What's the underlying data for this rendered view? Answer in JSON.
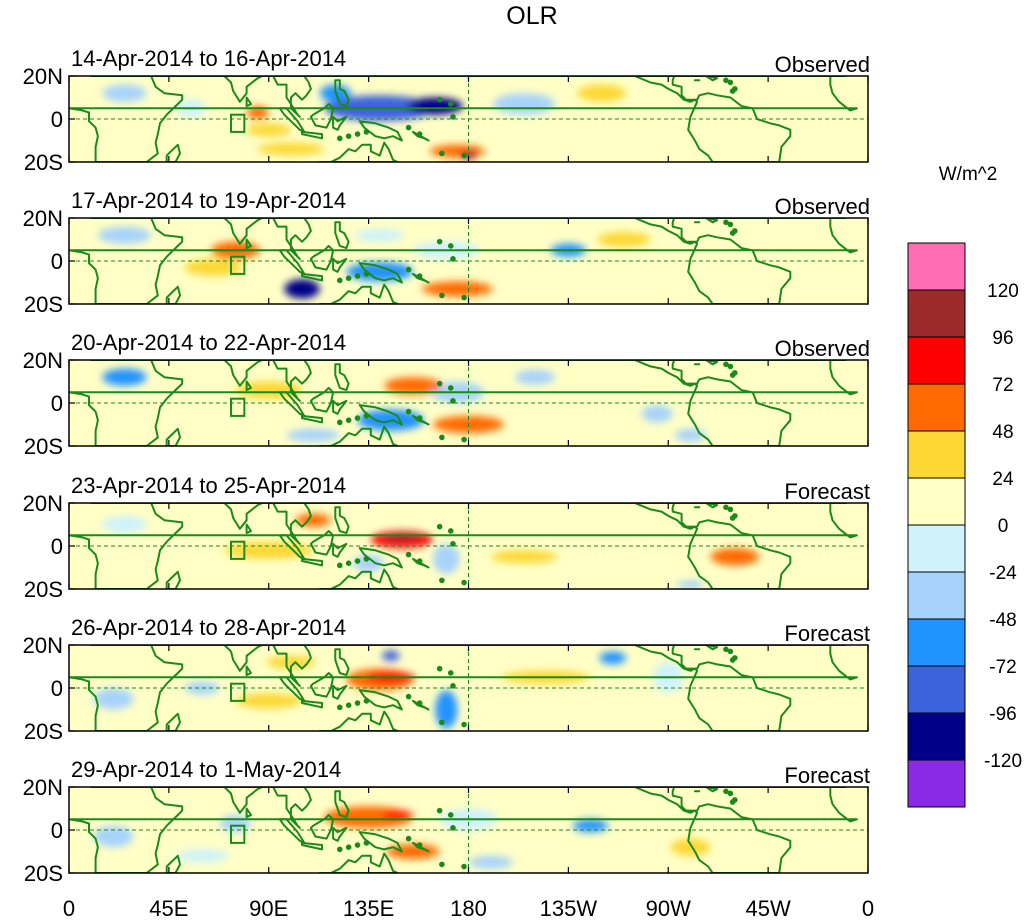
{
  "chart_data": {
    "type": "heatmap",
    "title": "OLR",
    "units_label": "W/m^2",
    "x_ticks": [
      "0",
      "45E",
      "90E",
      "135E",
      "180",
      "135W",
      "90W",
      "45W",
      "0"
    ],
    "y_ticks": [
      "20N",
      "0",
      "20S"
    ],
    "xlim_deg_east": [
      0,
      360
    ],
    "ylim_deg": [
      -20,
      20
    ],
    "colorbar": {
      "levels": [
        "120",
        "96",
        "72",
        "48",
        "24",
        "0",
        "-24",
        "-48",
        "-72",
        "-96",
        "-120"
      ],
      "colors": [
        "#ff6eb4",
        "#9c2a2a",
        "#ff0000",
        "#ff6a00",
        "#fdd835",
        "#ffffc6",
        "#cff2fb",
        "#a7d3fb",
        "#2093ff",
        "#3d63dc",
        "#000088",
        "#8b2ae6"
      ]
    },
    "land_color": "#1b8a1b",
    "panels": [
      {
        "date_range": "14-Apr-2014 to 16-Apr-2014",
        "kind": "Observed",
        "anomalies": [
          {
            "lon": 140,
            "lat": 5,
            "w": 50,
            "h": 12,
            "v": -96
          },
          {
            "lon": 165,
            "lat": 6,
            "w": 25,
            "h": 8,
            "v": -120
          },
          {
            "lon": 120,
            "lat": 12,
            "w": 14,
            "h": 8,
            "v": -72
          },
          {
            "lon": 205,
            "lat": 7,
            "w": 28,
            "h": 10,
            "v": -48
          },
          {
            "lon": 25,
            "lat": 12,
            "w": 20,
            "h": 8,
            "v": -48
          },
          {
            "lon": 55,
            "lat": 5,
            "w": 14,
            "h": 8,
            "v": -24
          },
          {
            "lon": 175,
            "lat": -15,
            "w": 25,
            "h": 6,
            "v": 48
          },
          {
            "lon": 180,
            "lat": -17,
            "w": 8,
            "h": 4,
            "v": 96
          },
          {
            "lon": 240,
            "lat": 12,
            "w": 22,
            "h": 8,
            "v": 24
          },
          {
            "lon": 85,
            "lat": 3,
            "w": 10,
            "h": 6,
            "v": 48
          },
          {
            "lon": 90,
            "lat": -5,
            "w": 20,
            "h": 6,
            "v": 24
          },
          {
            "lon": 100,
            "lat": -14,
            "w": 30,
            "h": 6,
            "v": 24
          }
        ]
      },
      {
        "date_range": "17-Apr-2014 to 19-Apr-2014",
        "kind": "Observed",
        "anomalies": [
          {
            "lon": 105,
            "lat": -13,
            "w": 16,
            "h": 9,
            "v": -120
          },
          {
            "lon": 25,
            "lat": 12,
            "w": 24,
            "h": 8,
            "v": -48
          },
          {
            "lon": 140,
            "lat": -5,
            "w": 30,
            "h": 9,
            "v": -72
          },
          {
            "lon": 170,
            "lat": 5,
            "w": 30,
            "h": 8,
            "v": -24
          },
          {
            "lon": 225,
            "lat": 5,
            "w": 16,
            "h": 6,
            "v": -72
          },
          {
            "lon": 175,
            "lat": -13,
            "w": 32,
            "h": 7,
            "v": 48
          },
          {
            "lon": 75,
            "lat": 5,
            "w": 22,
            "h": 8,
            "v": 48
          },
          {
            "lon": 65,
            "lat": -3,
            "w": 26,
            "h": 8,
            "v": 24
          },
          {
            "lon": 140,
            "lat": 12,
            "w": 22,
            "h": 6,
            "v": -24
          },
          {
            "lon": 250,
            "lat": 10,
            "w": 24,
            "h": 7,
            "v": 24
          }
        ]
      },
      {
        "date_range": "20-Apr-2014 to 22-Apr-2014",
        "kind": "Observed",
        "anomalies": [
          {
            "lon": 25,
            "lat": 12,
            "w": 20,
            "h": 8,
            "v": -72
          },
          {
            "lon": 145,
            "lat": -8,
            "w": 30,
            "h": 10,
            "v": -72
          },
          {
            "lon": 110,
            "lat": -15,
            "w": 24,
            "h": 6,
            "v": -48
          },
          {
            "lon": 175,
            "lat": 5,
            "w": 24,
            "h": 10,
            "v": -48
          },
          {
            "lon": 210,
            "lat": 12,
            "w": 18,
            "h": 7,
            "v": -48
          },
          {
            "lon": 265,
            "lat": -5,
            "w": 14,
            "h": 8,
            "v": -48
          },
          {
            "lon": 155,
            "lat": 8,
            "w": 26,
            "h": 8,
            "v": 48
          },
          {
            "lon": 180,
            "lat": -10,
            "w": 32,
            "h": 8,
            "v": 48
          },
          {
            "lon": 90,
            "lat": 6,
            "w": 30,
            "h": 8,
            "v": 24
          },
          {
            "lon": 280,
            "lat": -15,
            "w": 14,
            "h": 6,
            "v": -48
          }
        ]
      },
      {
        "date_range": "23-Apr-2014 to 25-Apr-2014",
        "kind": "Forecast",
        "anomalies": [
          {
            "lon": 150,
            "lat": 3,
            "w": 28,
            "h": 8,
            "v": 72
          },
          {
            "lon": 150,
            "lat": 4,
            "w": 18,
            "h": 4,
            "v": 96
          },
          {
            "lon": 90,
            "lat": -2,
            "w": 40,
            "h": 8,
            "v": 24
          },
          {
            "lon": 110,
            "lat": 12,
            "w": 16,
            "h": 6,
            "v": 48
          },
          {
            "lon": 170,
            "lat": -6,
            "w": 12,
            "h": 14,
            "v": -48
          },
          {
            "lon": 135,
            "lat": -8,
            "w": 14,
            "h": 8,
            "v": -48
          },
          {
            "lon": 25,
            "lat": 10,
            "w": 20,
            "h": 8,
            "v": -24
          },
          {
            "lon": 300,
            "lat": -5,
            "w": 22,
            "h": 8,
            "v": 48
          },
          {
            "lon": 280,
            "lat": -18,
            "w": 12,
            "h": 4,
            "v": -48
          },
          {
            "lon": 205,
            "lat": -5,
            "w": 30,
            "h": 6,
            "v": 24
          }
        ]
      },
      {
        "date_range": "26-Apr-2014 to 28-Apr-2014",
        "kind": "Forecast",
        "anomalies": [
          {
            "lon": 140,
            "lat": 4,
            "w": 30,
            "h": 10,
            "v": 48
          },
          {
            "lon": 145,
            "lat": 5,
            "w": 22,
            "h": 5,
            "v": 72
          },
          {
            "lon": 145,
            "lat": 15,
            "w": 8,
            "h": 5,
            "v": -96
          },
          {
            "lon": 170,
            "lat": -10,
            "w": 10,
            "h": 18,
            "v": -72
          },
          {
            "lon": 100,
            "lat": 12,
            "w": 22,
            "h": 6,
            "v": 24
          },
          {
            "lon": 90,
            "lat": -6,
            "w": 30,
            "h": 7,
            "v": 24
          },
          {
            "lon": 20,
            "lat": -5,
            "w": 18,
            "h": 10,
            "v": -48
          },
          {
            "lon": 245,
            "lat": 14,
            "w": 12,
            "h": 6,
            "v": -72
          },
          {
            "lon": 215,
            "lat": 5,
            "w": 40,
            "h": 6,
            "v": 24
          },
          {
            "lon": 270,
            "lat": 5,
            "w": 14,
            "h": 14,
            "v": -24
          },
          {
            "lon": 60,
            "lat": 0,
            "w": 16,
            "h": 6,
            "v": -48
          }
        ]
      },
      {
        "date_range": "29-Apr-2014 to 1-May-2014",
        "kind": "Forecast",
        "anomalies": [
          {
            "lon": 135,
            "lat": 6,
            "w": 40,
            "h": 10,
            "v": 48
          },
          {
            "lon": 148,
            "lat": 7,
            "w": 14,
            "h": 4,
            "v": 72
          },
          {
            "lon": 235,
            "lat": 2,
            "w": 16,
            "h": 6,
            "v": -72
          },
          {
            "lon": 75,
            "lat": 3,
            "w": 14,
            "h": 8,
            "v": -48
          },
          {
            "lon": 20,
            "lat": -3,
            "w": 18,
            "h": 10,
            "v": -48
          },
          {
            "lon": 155,
            "lat": -10,
            "w": 24,
            "h": 7,
            "v": 48
          },
          {
            "lon": 180,
            "lat": 5,
            "w": 26,
            "h": 10,
            "v": -24
          },
          {
            "lon": 190,
            "lat": -15,
            "w": 20,
            "h": 6,
            "v": -48
          },
          {
            "lon": 60,
            "lat": -12,
            "w": 24,
            "h": 6,
            "v": -24
          },
          {
            "lon": 280,
            "lat": -8,
            "w": 18,
            "h": 8,
            "v": 24
          }
        ]
      }
    ]
  }
}
